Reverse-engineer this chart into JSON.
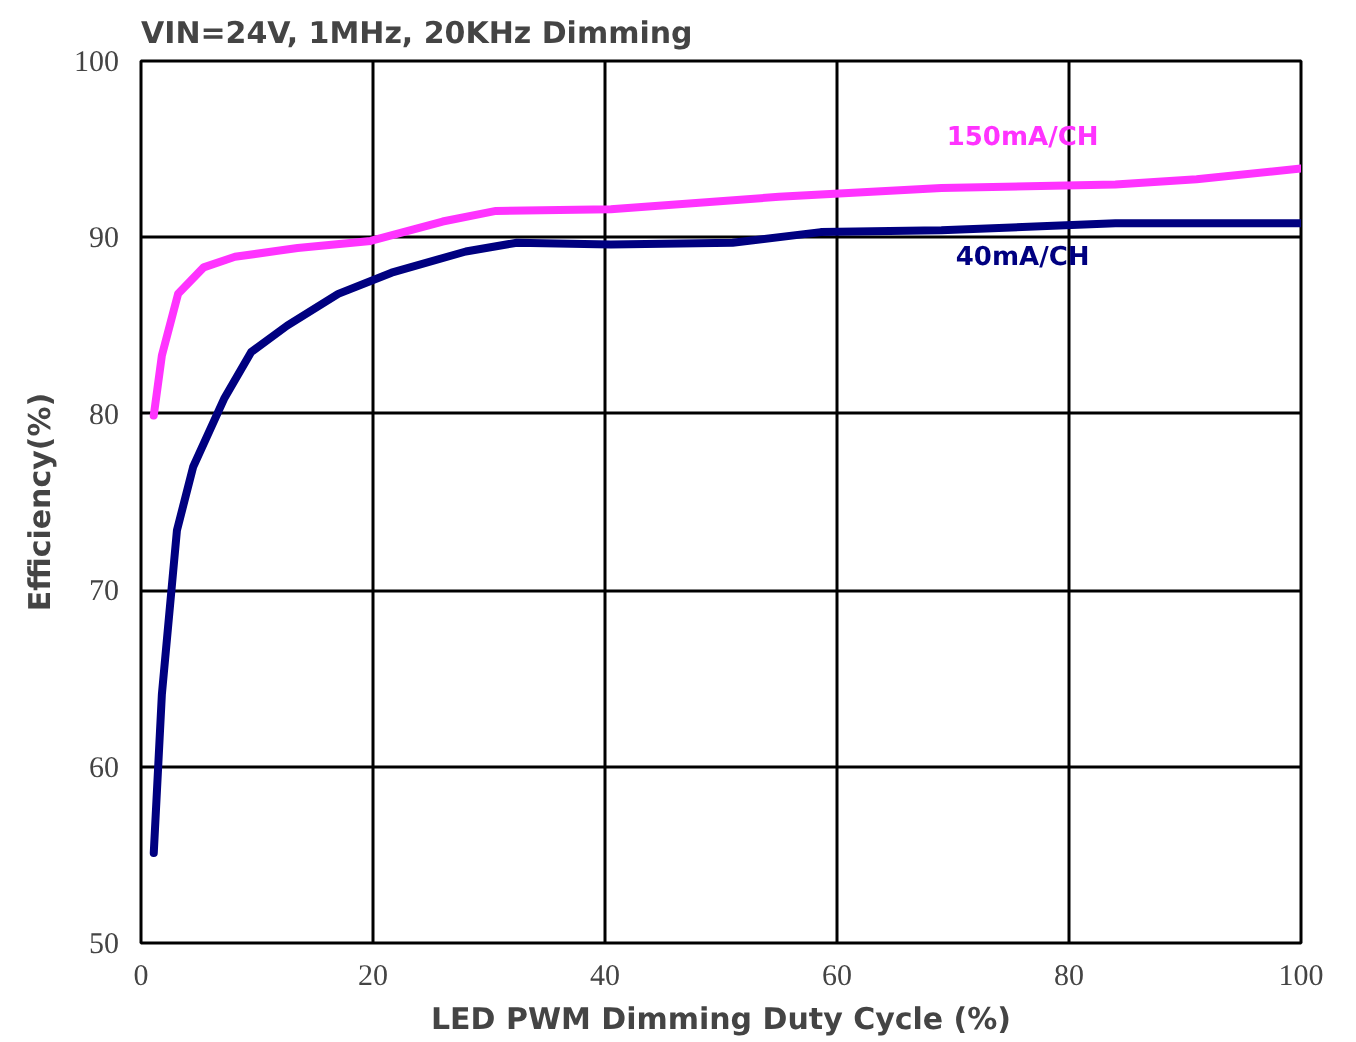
{
  "chart_data": {
    "type": "line",
    "title": "VIN=24V, 1MHz, 20KHz Dimming",
    "xlabel": "LED PWM Dimming Duty Cycle (%)",
    "ylabel": "Efficiency(%)",
    "xlim": [
      0,
      100
    ],
    "ylim": [
      50,
      100
    ],
    "xticks": [
      0,
      20,
      40,
      60,
      80,
      100
    ],
    "yticks": [
      50,
      60,
      70,
      80,
      90,
      100
    ],
    "grid": true,
    "line_style": "solid",
    "series": [
      {
        "name": "150mA/CH",
        "color": "#ff33ff",
        "x": [
          1.1,
          1.8,
          3.2,
          5.4,
          8.1,
          13.5,
          19.8,
          26,
          30.6,
          40.5,
          55,
          69,
          84,
          91,
          100
        ],
        "values": [
          79.9,
          83.3,
          86.8,
          88.3,
          88.9,
          89.4,
          89.8,
          90.9,
          91.5,
          91.6,
          92.3,
          92.8,
          93.0,
          93.3,
          93.9
        ]
      },
      {
        "name": "40mA/CH",
        "color": "#000080",
        "x": [
          1.1,
          1.8,
          3.1,
          4.5,
          7.2,
          9.5,
          12.6,
          17,
          21.6,
          28,
          32.4,
          40.5,
          51,
          58.6,
          69,
          84,
          100
        ],
        "values": [
          55.1,
          64.1,
          73.4,
          77.0,
          80.9,
          83.5,
          85.0,
          86.8,
          88.0,
          89.2,
          89.7,
          89.6,
          89.7,
          90.3,
          90.4,
          90.8,
          90.8
        ]
      }
    ]
  }
}
